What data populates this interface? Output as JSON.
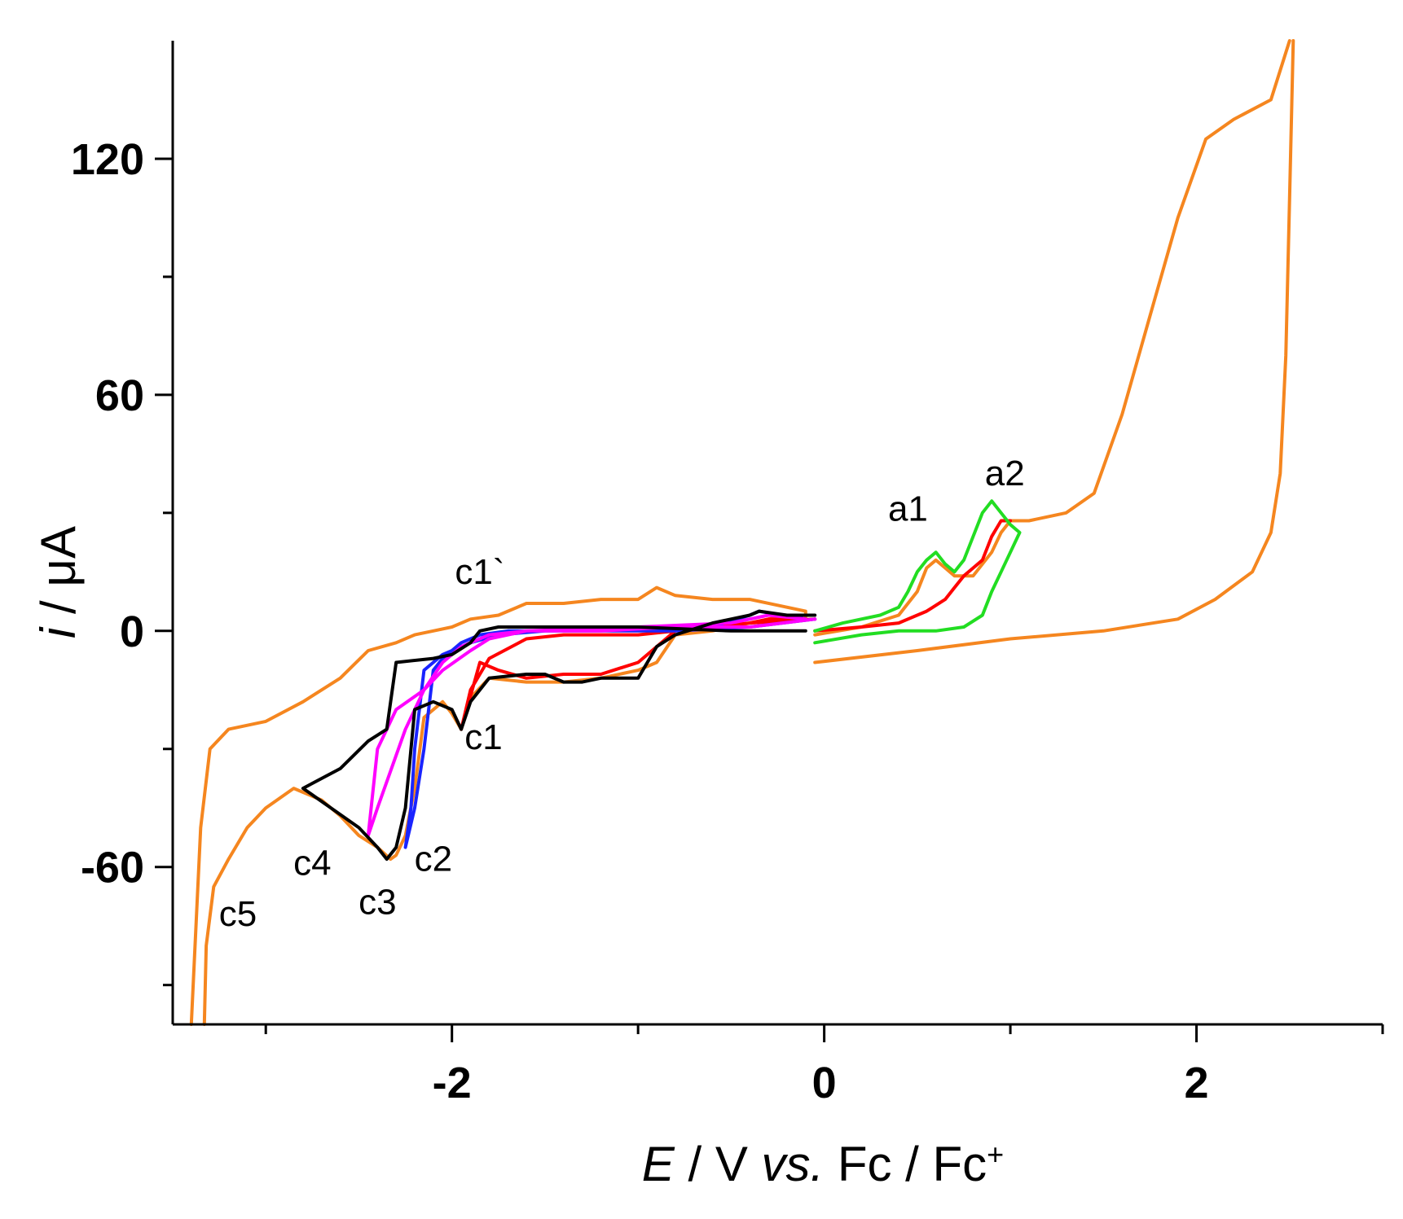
{
  "chart_data": {
    "type": "line",
    "title": "",
    "xlabel": {
      "italic": "E",
      "rest": " / V ",
      "vs": "vs.",
      "tail": " Fc / Fc",
      "sup": "+"
    },
    "ylabel": {
      "italic": "i",
      "rest": " / μA"
    },
    "xlim": [
      -3.5,
      3.0
    ],
    "ylim": [
      -100,
      150
    ],
    "x_ticks": [
      -2,
      0,
      2
    ],
    "x_tick_labels": [
      "-2",
      "0",
      "2"
    ],
    "x_minor_ticks": [
      -3,
      -1,
      1,
      3
    ],
    "y_ticks": [
      -60,
      0,
      60,
      120
    ],
    "y_tick_labels": [
      "-60",
      "0",
      "60",
      "120"
    ],
    "y_minor_ticks": [
      -90,
      -30,
      30,
      90
    ],
    "grid": false,
    "annotations": [
      {
        "text": "c1`",
        "x": -1.85,
        "y": 12
      },
      {
        "text": "c1",
        "x": -1.83,
        "y": -30
      },
      {
        "text": "c2",
        "x": -2.1,
        "y": -61
      },
      {
        "text": "c3",
        "x": -2.4,
        "y": -72
      },
      {
        "text": "c4",
        "x": -2.75,
        "y": -62
      },
      {
        "text": "c5",
        "x": -3.15,
        "y": -75
      },
      {
        "text": "a1",
        "x": 0.45,
        "y": 28
      },
      {
        "text": "a2",
        "x": 0.97,
        "y": 37
      }
    ],
    "series": [
      {
        "name": "orange",
        "color": "#f5861f",
        "points": [
          [
            -0.05,
            -8
          ],
          [
            0.5,
            -5
          ],
          [
            1.0,
            -2
          ],
          [
            1.5,
            0
          ],
          [
            1.9,
            3
          ],
          [
            2.1,
            8
          ],
          [
            2.3,
            15
          ],
          [
            2.4,
            25
          ],
          [
            2.45,
            40
          ],
          [
            2.48,
            70
          ],
          [
            2.5,
            110
          ],
          [
            2.52,
            150
          ],
          [
            null,
            null
          ],
          [
            -3.33,
            -100
          ],
          [
            -3.32,
            -80
          ],
          [
            -3.28,
            -65
          ],
          [
            -3.2,
            -58
          ],
          [
            -3.1,
            -50
          ],
          [
            -3.0,
            -45
          ],
          [
            -2.85,
            -40
          ],
          [
            -2.7,
            -43
          ],
          [
            -2.6,
            -47
          ],
          [
            -2.5,
            -52
          ],
          [
            -2.4,
            -55
          ],
          [
            -2.33,
            -58
          ],
          [
            -2.3,
            -57
          ],
          [
            -2.25,
            -52
          ],
          [
            -2.2,
            -40
          ],
          [
            -2.15,
            -22
          ],
          [
            -2.05,
            -18
          ],
          [
            -2.0,
            -21
          ],
          [
            -1.95,
            -25
          ],
          [
            -1.9,
            -17
          ],
          [
            -1.8,
            -12
          ],
          [
            -1.6,
            -13
          ],
          [
            -1.4,
            -13
          ],
          [
            -1.2,
            -12
          ],
          [
            -1.0,
            -10
          ],
          [
            -0.9,
            -8
          ],
          [
            -0.8,
            -1
          ],
          [
            -0.6,
            0
          ],
          [
            -0.4,
            2
          ],
          [
            -0.3,
            3
          ],
          [
            -0.2,
            4
          ],
          [
            -0.1,
            3
          ],
          [
            -0.1,
            5
          ],
          [
            -0.4,
            8
          ],
          [
            -0.6,
            8
          ],
          [
            -0.8,
            9
          ],
          [
            -0.9,
            11
          ],
          [
            -1.0,
            8
          ],
          [
            -1.2,
            8
          ],
          [
            -1.4,
            7
          ],
          [
            -1.6,
            7
          ],
          [
            -1.75,
            4
          ],
          [
            -1.9,
            3
          ],
          [
            -2.0,
            1
          ],
          [
            -2.1,
            0
          ],
          [
            -2.2,
            -1
          ],
          [
            -2.3,
            -3
          ],
          [
            -2.45,
            -5
          ],
          [
            -2.6,
            -12
          ],
          [
            -2.8,
            -18
          ],
          [
            -3.0,
            -23
          ],
          [
            -3.2,
            -25
          ],
          [
            -3.3,
            -30
          ],
          [
            -3.35,
            -50
          ],
          [
            -3.38,
            -80
          ],
          [
            -3.4,
            -100
          ],
          [
            null,
            null
          ],
          [
            -0.05,
            -1
          ],
          [
            0.2,
            1
          ],
          [
            0.4,
            4
          ],
          [
            0.5,
            10
          ],
          [
            0.55,
            16
          ],
          [
            0.6,
            18
          ],
          [
            0.65,
            16
          ],
          [
            0.7,
            14
          ],
          [
            0.8,
            14
          ],
          [
            0.9,
            20
          ],
          [
            0.95,
            25
          ],
          [
            1.0,
            28
          ],
          [
            1.1,
            28
          ],
          [
            1.3,
            30
          ],
          [
            1.45,
            35
          ],
          [
            1.6,
            55
          ],
          [
            1.75,
            80
          ],
          [
            1.9,
            105
          ],
          [
            2.05,
            125
          ],
          [
            2.2,
            130
          ],
          [
            2.4,
            135
          ],
          [
            2.5,
            150
          ]
        ]
      },
      {
        "name": "red",
        "color": "#ff0000",
        "points": [
          [
            -0.05,
            3
          ],
          [
            -0.4,
            2
          ],
          [
            -0.8,
            0
          ],
          [
            -1.0,
            -8
          ],
          [
            -1.2,
            -11
          ],
          [
            -1.4,
            -11
          ],
          [
            -1.6,
            -12
          ],
          [
            -1.75,
            -10
          ],
          [
            -1.85,
            -8
          ],
          [
            -1.95,
            -25
          ],
          [
            -1.9,
            -15
          ],
          [
            -1.8,
            -7
          ],
          [
            -1.6,
            -2
          ],
          [
            -1.4,
            -1
          ],
          [
            -1.0,
            -1
          ],
          [
            -0.6,
            1
          ],
          [
            -0.4,
            2
          ],
          [
            -0.3,
            3
          ],
          [
            -0.1,
            3
          ],
          [
            null,
            null
          ],
          [
            -0.05,
            0
          ],
          [
            0.2,
            1
          ],
          [
            0.4,
            2
          ],
          [
            0.55,
            5
          ],
          [
            0.65,
            8
          ],
          [
            0.7,
            11
          ],
          [
            0.75,
            14
          ],
          [
            0.8,
            16
          ],
          [
            0.85,
            18
          ],
          [
            0.9,
            24
          ],
          [
            0.95,
            28
          ],
          [
            1.0,
            28
          ]
        ]
      },
      {
        "name": "blue",
        "color": "#1a24ff",
        "points": [
          [
            -0.05,
            3
          ],
          [
            -0.4,
            1
          ],
          [
            -0.8,
            0
          ],
          [
            -1.0,
            0
          ],
          [
            -1.4,
            0
          ],
          [
            -1.7,
            0
          ],
          [
            -1.85,
            -1
          ],
          [
            -1.95,
            -3
          ],
          [
            -2.05,
            -7
          ],
          [
            -2.1,
            -10
          ],
          [
            -2.15,
            -30
          ],
          [
            -2.2,
            -45
          ],
          [
            -2.25,
            -55
          ],
          [
            -2.22,
            -45
          ],
          [
            -2.2,
            -30
          ],
          [
            -2.15,
            -10
          ],
          [
            -2.05,
            -6
          ],
          [
            -1.9,
            -3
          ],
          [
            -1.75,
            -1
          ],
          [
            -1.5,
            0
          ],
          [
            -1.0,
            1
          ],
          [
            -0.6,
            1
          ],
          [
            -0.4,
            4
          ],
          [
            -0.35,
            5
          ],
          [
            -0.1,
            3
          ]
        ]
      },
      {
        "name": "magenta",
        "color": "#ff00ff",
        "points": [
          [
            -0.05,
            3
          ],
          [
            -0.4,
            1
          ],
          [
            -0.8,
            1
          ],
          [
            -1.2,
            0
          ],
          [
            -1.6,
            0
          ],
          [
            -1.8,
            -1
          ],
          [
            -1.95,
            -4
          ],
          [
            -2.05,
            -8
          ],
          [
            -2.15,
            -15
          ],
          [
            -2.25,
            -25
          ],
          [
            -2.4,
            -45
          ],
          [
            -2.45,
            -52
          ],
          [
            -2.4,
            -30
          ],
          [
            -2.3,
            -20
          ],
          [
            -2.15,
            -15
          ],
          [
            -2.05,
            -10
          ],
          [
            -1.9,
            -5
          ],
          [
            -1.8,
            -2
          ],
          [
            -1.6,
            0
          ],
          [
            -1.0,
            1
          ],
          [
            -0.5,
            2
          ],
          [
            -0.3,
            4
          ],
          [
            -0.1,
            3
          ]
        ]
      },
      {
        "name": "green",
        "color": "#22dd22",
        "points": [
          [
            -0.05,
            -3
          ],
          [
            0.2,
            -1
          ],
          [
            0.4,
            0
          ],
          [
            0.6,
            0
          ],
          [
            0.75,
            1
          ],
          [
            0.85,
            4
          ],
          [
            0.9,
            10
          ],
          [
            0.95,
            15
          ],
          [
            1.0,
            20
          ],
          [
            1.05,
            25
          ],
          [
            1.0,
            27
          ],
          [
            0.95,
            30
          ],
          [
            0.9,
            33
          ],
          [
            0.85,
            30
          ],
          [
            0.8,
            24
          ],
          [
            0.75,
            18
          ],
          [
            0.7,
            15
          ],
          [
            0.65,
            17
          ],
          [
            0.6,
            20
          ],
          [
            0.55,
            18
          ],
          [
            0.5,
            15
          ],
          [
            0.45,
            10
          ],
          [
            0.4,
            6
          ],
          [
            0.3,
            4
          ],
          [
            0.1,
            2
          ],
          [
            -0.05,
            0
          ]
        ]
      },
      {
        "name": "black",
        "color": "#000000",
        "points": [
          [
            -0.05,
            4
          ],
          [
            -0.2,
            4
          ],
          [
            -0.35,
            5
          ],
          [
            -0.4,
            4
          ],
          [
            -0.6,
            2
          ],
          [
            -0.8,
            -1
          ],
          [
            -0.9,
            -4
          ],
          [
            -1.0,
            -12
          ],
          [
            -1.2,
            -12
          ],
          [
            -1.3,
            -13
          ],
          [
            -1.4,
            -13
          ],
          [
            -1.5,
            -11
          ],
          [
            -1.6,
            -11
          ],
          [
            -1.8,
            -12
          ],
          [
            -1.9,
            -18
          ],
          [
            -1.95,
            -25
          ],
          [
            -2.0,
            -20
          ],
          [
            -2.1,
            -18
          ],
          [
            -2.2,
            -20
          ],
          [
            -2.25,
            -45
          ],
          [
            -2.3,
            -55
          ],
          [
            -2.35,
            -58
          ],
          [
            -2.4,
            -55
          ],
          [
            -2.5,
            -50
          ],
          [
            -2.65,
            -45
          ],
          [
            -2.8,
            -40
          ],
          [
            -2.6,
            -35
          ],
          [
            -2.45,
            -28
          ],
          [
            -2.35,
            -25
          ],
          [
            -2.3,
            -8
          ],
          [
            -2.1,
            -7
          ],
          [
            -2.0,
            -6
          ],
          [
            -1.9,
            -3
          ],
          [
            -1.85,
            0
          ],
          [
            -1.75,
            1
          ],
          [
            -1.5,
            1
          ],
          [
            -1.0,
            1
          ],
          [
            -0.5,
            0
          ],
          [
            -0.1,
            0
          ]
        ]
      }
    ]
  }
}
